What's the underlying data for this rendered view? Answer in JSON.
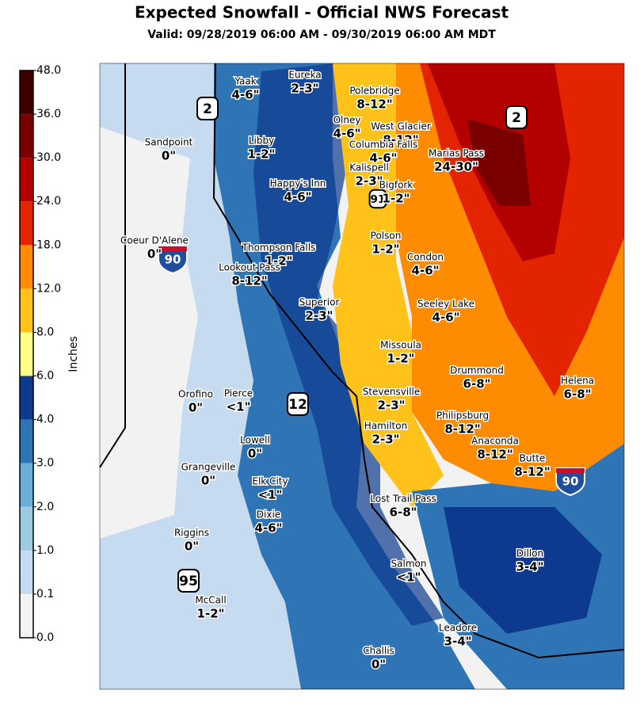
{
  "title": "Expected Snowfall - Official NWS Forecast",
  "subtitle": "Valid: 09/28/2019 06:00 AM - 09/30/2019 06:00 AM MDT",
  "colorbar": {
    "label": "Inches",
    "ticks": [
      {
        "value": 0,
        "label": "0.0"
      },
      {
        "value": 0.1,
        "label": "0.1"
      },
      {
        "value": 1,
        "label": "1.0"
      },
      {
        "value": 2,
        "label": "2.0"
      },
      {
        "value": 3,
        "label": "3.0"
      },
      {
        "value": 4,
        "label": "4.0"
      },
      {
        "value": 6,
        "label": "6.0"
      },
      {
        "value": 8,
        "label": "8.0"
      },
      {
        "value": 12,
        "label": "12.0"
      },
      {
        "value": 18,
        "label": "18.0"
      },
      {
        "value": 24,
        "label": "24.0"
      },
      {
        "value": 30,
        "label": "30.0"
      },
      {
        "value": 36,
        "label": "36.0"
      },
      {
        "value": 48,
        "label": "48.0"
      }
    ],
    "colors": [
      "#f2f2f2",
      "#c6dbef",
      "#9ecae1",
      "#6baed6",
      "#2f74b5",
      "#0d3a8e",
      "#ffff88",
      "#ffc21a",
      "#ff8c00",
      "#e32400",
      "#b30000",
      "#7a0000",
      "#3d0000"
    ]
  },
  "places": [
    {
      "name": "Yaak",
      "amount": "4-6\""
    },
    {
      "name": "Eureka",
      "amount": "2-3\""
    },
    {
      "name": "Polebridge",
      "amount": "8-12\""
    },
    {
      "name": "Sandpoint",
      "amount": "0\""
    },
    {
      "name": "Libby",
      "amount": "1-2\""
    },
    {
      "name": "Olney",
      "amount": "4-6\""
    },
    {
      "name": "West Glacier",
      "amount": "8-12\""
    },
    {
      "name": "Columbia Falls",
      "amount": "4-6\""
    },
    {
      "name": "Marias Pass",
      "amount": "24-30\""
    },
    {
      "name": "Kalispell",
      "amount": "2-3\""
    },
    {
      "name": "Bigfork",
      "amount": "1-2\""
    },
    {
      "name": "Happy's Inn",
      "amount": "4-6\""
    },
    {
      "name": "Coeur D'Alene",
      "amount": "0\""
    },
    {
      "name": "Thompson Falls",
      "amount": "1-2\""
    },
    {
      "name": "Polson",
      "amount": "1-2\""
    },
    {
      "name": "Condon",
      "amount": "4-6\""
    },
    {
      "name": "Lookout Pass",
      "amount": "8-12\""
    },
    {
      "name": "Superior",
      "amount": "2-3\""
    },
    {
      "name": "Seeley Lake",
      "amount": "4-6\""
    },
    {
      "name": "Missoula",
      "amount": "1-2\""
    },
    {
      "name": "Drummond",
      "amount": "6-8\""
    },
    {
      "name": "Helena",
      "amount": "6-8\""
    },
    {
      "name": "Orofino",
      "amount": "0\""
    },
    {
      "name": "Pierce",
      "amount": "<1\""
    },
    {
      "name": "Stevensville",
      "amount": "2-3\""
    },
    {
      "name": "Philipsburg",
      "amount": "8-12\""
    },
    {
      "name": "Hamilton",
      "amount": "2-3\""
    },
    {
      "name": "Lowell",
      "amount": "0\""
    },
    {
      "name": "Anaconda",
      "amount": "8-12\""
    },
    {
      "name": "Grangeville",
      "amount": "0\""
    },
    {
      "name": "Butte",
      "amount": "8-12\""
    },
    {
      "name": "Elk City",
      "amount": "<1\""
    },
    {
      "name": "Lost Trail Pass",
      "amount": "6-8\""
    },
    {
      "name": "Dixie",
      "amount": "4-6\""
    },
    {
      "name": "Riggins",
      "amount": "0\""
    },
    {
      "name": "Dillon",
      "amount": "3-4\""
    },
    {
      "name": "Salmon",
      "amount": "<1\""
    },
    {
      "name": "McCall",
      "amount": "1-2\""
    },
    {
      "name": "Leadore",
      "amount": "3-4\""
    },
    {
      "name": "Challis",
      "amount": "0\""
    }
  ],
  "shields": [
    "2",
    "2",
    "91",
    "90",
    "12",
    "95",
    "90"
  ]
}
